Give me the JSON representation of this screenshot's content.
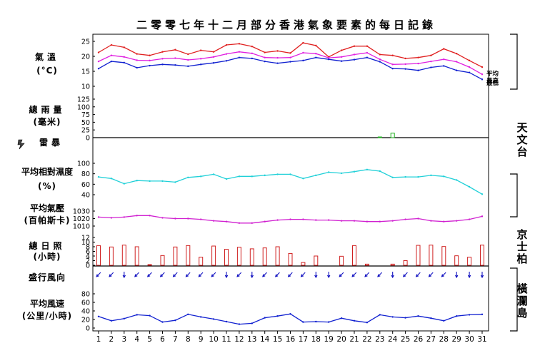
{
  "chart_data": {
    "type": "line",
    "title": "二零零七年十二月部分香港氣象要素的每日記錄",
    "x": [
      1,
      2,
      3,
      4,
      5,
      6,
      7,
      8,
      9,
      10,
      11,
      12,
      13,
      14,
      15,
      16,
      17,
      18,
      19,
      20,
      21,
      22,
      23,
      24,
      25,
      26,
      27,
      28,
      29,
      30,
      31
    ],
    "panels": [
      {
        "key": "temp",
        "label": "氣溫",
        "unit": "(°C)",
        "type": "line",
        "ylim": [
          10,
          25
        ],
        "yticks": [
          10,
          15,
          20,
          25
        ],
        "series": [
          {
            "name": "最高",
            "color": "#e02020",
            "values": [
              21.3,
              23.8,
              23.0,
              20.8,
              20.3,
              21.5,
              22.2,
              20.7,
              22.0,
              21.5,
              23.8,
              24.2,
              23.3,
              21.3,
              21.8,
              21.1,
              24.5,
              23.6,
              19.8,
              22.0,
              23.4,
              23.4,
              20.6,
              20.3,
              19.3,
              19.6,
              20.3,
              22.5,
              20.9,
              18.6,
              16.4
            ]
          },
          {
            "name": "平均",
            "color": "#e020e0",
            "values": [
              18.3,
              20.3,
              19.8,
              18.7,
              18.6,
              19.2,
              19.4,
              18.8,
              19.2,
              19.8,
              20.8,
              21.5,
              21.0,
              19.6,
              19.5,
              19.6,
              21.2,
              20.9,
              19.5,
              19.8,
              20.6,
              21.2,
              19.0,
              17.3,
              17.4,
              17.6,
              18.3,
              19.0,
              18.2,
              16.4,
              14.0
            ]
          },
          {
            "name": "最低",
            "color": "#1020d0",
            "values": [
              15.9,
              18.3,
              17.9,
              16.2,
              16.9,
              17.3,
              17.1,
              16.7,
              17.3,
              17.8,
              18.5,
              19.6,
              19.3,
              18.3,
              17.7,
              18.2,
              18.6,
              19.6,
              19.0,
              18.4,
              18.9,
              19.6,
              18.2,
              15.9,
              15.8,
              15.3,
              16.3,
              16.8,
              15.3,
              14.6,
              12.3
            ]
          }
        ]
      },
      {
        "key": "rain",
        "label": "總雨量",
        "unit": "(毫米)",
        "type": "bar",
        "ylim": [
          0,
          125
        ],
        "yticks": [
          0,
          25,
          50,
          75,
          100,
          125
        ],
        "color": "#20b020",
        "values": [
          0,
          0,
          0,
          0,
          0,
          0,
          0,
          0,
          0,
          0,
          0,
          0,
          0,
          0,
          0,
          0,
          0,
          0,
          0,
          0,
          0,
          0,
          1.2,
          14.5,
          0,
          0,
          0,
          0,
          0,
          0,
          0
        ]
      },
      {
        "key": "thunder",
        "label": "雷暴",
        "type": "marker",
        "icon": "thunderstorm-icon"
      },
      {
        "key": "rh",
        "label": "平均相對濕度",
        "unit": "(%)",
        "type": "line",
        "ylim": [
          40,
          100
        ],
        "yticks": [
          40,
          60,
          80,
          100
        ],
        "series": [
          {
            "color": "#20d0d8",
            "values": [
              74,
              71,
              61,
              67,
              66,
              66,
              64,
              73,
              75,
              79,
              70,
              75,
              75,
              77,
              79,
              79,
              71,
              77,
              83,
              81,
              84,
              88,
              85,
              73,
              74,
              74,
              77,
              75,
              68,
              55,
              41
            ]
          }
        ]
      },
      {
        "key": "pressure",
        "label": "平均氣壓",
        "unit": "(百帕斯卡)",
        "type": "line",
        "ylim": [
          1010,
          1030
        ],
        "yticks": [
          1010,
          1020,
          1030
        ],
        "series": [
          {
            "color": "#d020d0",
            "values": [
              1022,
              1021,
              1022,
              1024,
              1024,
              1021,
              1020,
              1020,
              1019,
              1017,
              1016,
              1014,
              1014,
              1016,
              1018,
              1019,
              1019,
              1018,
              1018,
              1017,
              1017,
              1016,
              1016,
              1017,
              1019,
              1020,
              1017,
              1016,
              1017,
              1019,
              1023
            ]
          }
        ]
      },
      {
        "key": "sun",
        "label": "總日照",
        "unit": "(小時)",
        "type": "bar",
        "ylim": [
          0,
          12
        ],
        "yticks": [
          0,
          2,
          4,
          6,
          8,
          10,
          12
        ],
        "color": "#d02020",
        "values": [
          8.5,
          7.9,
          8.7,
          8.0,
          0.3,
          4.2,
          7.9,
          8.5,
          3.5,
          8.3,
          6.9,
          7.8,
          7.1,
          7.5,
          8.0,
          5.1,
          1.2,
          4.0,
          0,
          3.9,
          8.5,
          0.5,
          0,
          0.5,
          2.0,
          8.6,
          8.7,
          8.1,
          4.1,
          3.5,
          8.7
        ]
      },
      {
        "key": "wind_dir",
        "label": "盛行風向",
        "type": "arrows",
        "color": "#1010c0",
        "values": [
          225,
          225,
          180,
          225,
          225,
          225,
          225,
          225,
          225,
          225,
          180,
          225,
          180,
          225,
          225,
          225,
          225,
          180,
          180,
          225,
          225,
          225,
          225,
          180,
          225,
          225,
          225,
          225,
          180,
          180,
          180
        ]
      },
      {
        "key": "wind_speed",
        "label": "平均風速",
        "unit": "(公里/小時)",
        "type": "line",
        "ylim": [
          0,
          100
        ],
        "yticks": [
          0,
          20,
          40,
          60,
          80
        ],
        "series": [
          {
            "color": "#1020d0",
            "values": [
              27,
              17,
              22,
              31,
              29,
              14,
              18,
              32,
              26,
              21,
              15,
              9,
              11,
              24,
              28,
              33,
              14,
              15,
              14,
              23,
              17,
              13,
              31,
              26,
              24,
              28,
              23,
              17,
              28,
              31,
              32
            ]
          }
        ]
      }
    ],
    "stations": [
      {
        "name": "天文台"
      },
      {
        "name": "京士柏"
      },
      {
        "name": "橫瀾島"
      }
    ],
    "legend": "right"
  }
}
